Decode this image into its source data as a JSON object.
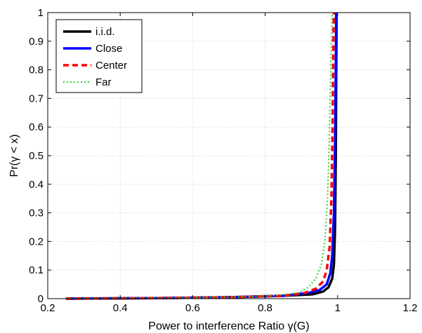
{
  "chart_data": {
    "type": "line",
    "title": "",
    "xlabel": "Power to interference Ratio γ(G)",
    "ylabel": "Pr(γ < x)",
    "xlim": [
      0.2,
      1.2
    ],
    "ylim": [
      0,
      1
    ],
    "xticks": [
      "0.2",
      "0.4",
      "0.6",
      "0.8",
      "1",
      "1.2"
    ],
    "yticks": [
      "0",
      "0.1",
      "0.2",
      "0.3",
      "0.4",
      "0.5",
      "0.6",
      "0.7",
      "0.8",
      "0.9",
      "1"
    ],
    "xtick_values": [
      0.2,
      0.4,
      0.6,
      0.8,
      1.0,
      1.2
    ],
    "ytick_values": [
      0,
      0.1,
      0.2,
      0.3,
      0.4,
      0.5,
      0.6,
      0.7,
      0.8,
      0.9,
      1.0
    ],
    "grid": true,
    "legend_position": "top-left",
    "series": [
      {
        "name": "i.i.d.",
        "color": "#000000",
        "style": "solid",
        "x": [
          0.25,
          0.5,
          0.7,
          0.85,
          0.93,
          0.96,
          0.975,
          0.985,
          0.99,
          0.993,
          0.995,
          0.996,
          0.997,
          0.997
        ],
        "y": [
          0,
          0.002,
          0.005,
          0.01,
          0.015,
          0.025,
          0.04,
          0.07,
          0.12,
          0.25,
          0.5,
          0.75,
          0.95,
          1.0
        ]
      },
      {
        "name": "Close",
        "color": "#0000ff",
        "style": "solid",
        "x": [
          0.25,
          0.5,
          0.7,
          0.85,
          0.92,
          0.95,
          0.97,
          0.98,
          0.985,
          0.99,
          0.993,
          0.995,
          0.996,
          0.996
        ],
        "y": [
          0,
          0.002,
          0.005,
          0.01,
          0.02,
          0.03,
          0.05,
          0.09,
          0.15,
          0.3,
          0.55,
          0.8,
          0.95,
          1.0
        ]
      },
      {
        "name": "Center",
        "color": "#ff0000",
        "style": "dashed",
        "x": [
          0.25,
          0.5,
          0.7,
          0.85,
          0.91,
          0.94,
          0.96,
          0.97,
          0.978,
          0.983,
          0.986,
          0.988,
          0.989,
          0.99
        ],
        "y": [
          0,
          0.002,
          0.005,
          0.01,
          0.02,
          0.035,
          0.06,
          0.1,
          0.18,
          0.35,
          0.6,
          0.85,
          0.96,
          1.0
        ]
      },
      {
        "name": "Far",
        "color": "#33cc33",
        "style": "dotted",
        "x": [
          0.25,
          0.5,
          0.7,
          0.82,
          0.89,
          0.92,
          0.94,
          0.955,
          0.965,
          0.972,
          0.977,
          0.98,
          0.983,
          0.985
        ],
        "y": [
          0,
          0.002,
          0.005,
          0.01,
          0.02,
          0.04,
          0.07,
          0.12,
          0.2,
          0.35,
          0.55,
          0.75,
          0.9,
          1.0
        ]
      }
    ]
  }
}
